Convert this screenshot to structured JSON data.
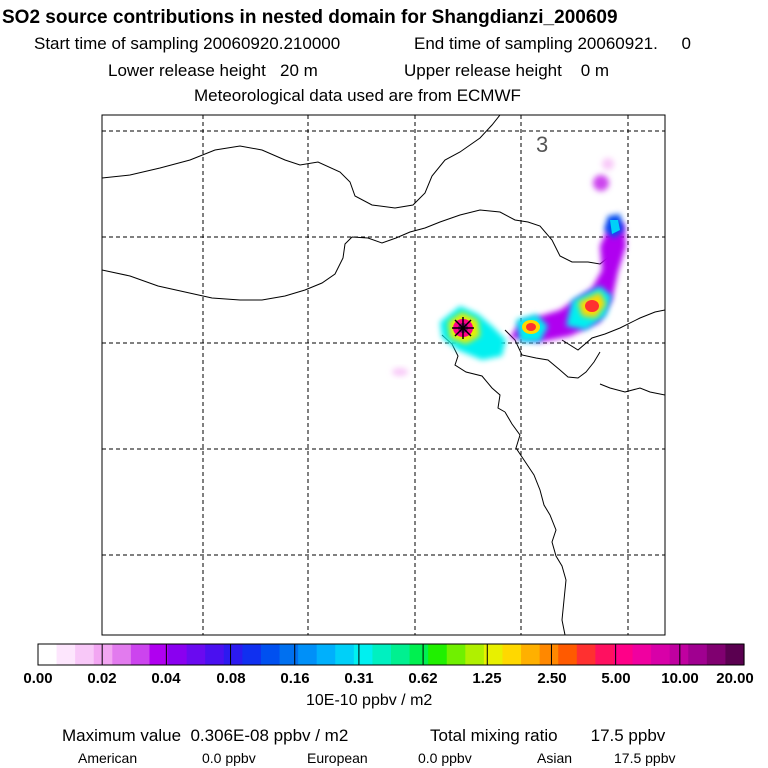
{
  "title": "SO2 source contributions in nested domain for Shangdianzi_200609",
  "sampling": {
    "start": "Start time of sampling 20060920.210000",
    "end": "End time of sampling 20060921.     0"
  },
  "release": {
    "lower": "Lower release height   20 m",
    "upper": "Upper release height    0 m"
  },
  "met_source": "Meteorological data used are from ECMWF",
  "map": {
    "label": "3",
    "station_marker": "star-icon",
    "plume_max_value_ppbv_m2": 3.06e-09
  },
  "colorbar": {
    "ticks": [
      "0.00",
      "0.02",
      "0.04",
      "0.08",
      "0.16",
      "0.31",
      "0.62",
      "1.25",
      "2.50",
      "5.00",
      "10.00",
      "20.00"
    ],
    "colors": [
      "#ffffff",
      "#fde6fd",
      "#f8c8f8",
      "#f2a6f2",
      "#e27bee",
      "#cc44ee",
      "#b000f0",
      "#8a00f0",
      "#6a0af0",
      "#4a10f0",
      "#2c1af0",
      "#1030f0",
      "#0050f0",
      "#0070f0",
      "#0090f8",
      "#00b0fc",
      "#00d0f8",
      "#00f0f0",
      "#00f0c0",
      "#00f090",
      "#00f050",
      "#20f000",
      "#70f000",
      "#b0f000",
      "#e8f000",
      "#ffd800",
      "#ffb000",
      "#ff8800",
      "#ff5a00",
      "#ff3030",
      "#ff1060",
      "#ff0088",
      "#f000a0",
      "#d800a8",
      "#c000a0",
      "#a00090",
      "#800070",
      "#5a0050"
    ],
    "units": "10E-10 ppbv / m2"
  },
  "summary": {
    "max_label": "Maximum value  0.306E-08 ppbv / m2",
    "total_label": "Total mixing ratio       17.5 ppbv",
    "american_label": "American",
    "american_value": "0.0 ppbv",
    "european_label": "European",
    "european_value": "0.0 ppbv",
    "asian_label": "Asian",
    "asian_value": "17.5 ppbv"
  }
}
